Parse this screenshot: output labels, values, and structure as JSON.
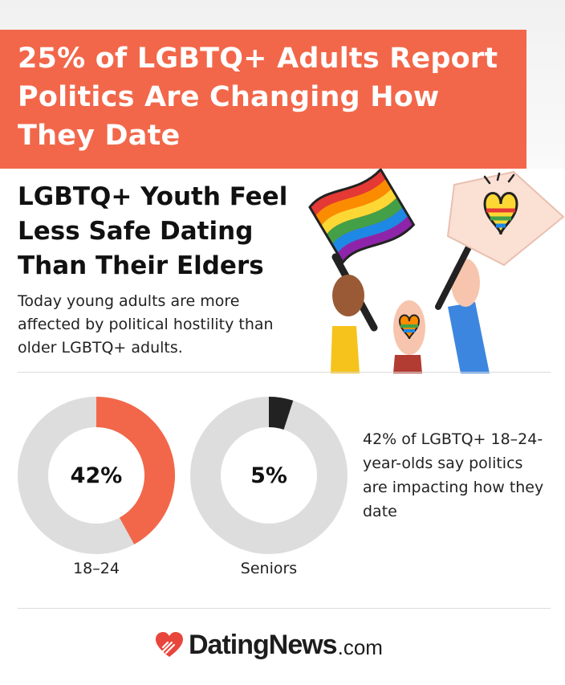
{
  "banner": {
    "title": "25% of LGBTQ+ Adults Report Politics Are Changing How They Date"
  },
  "headline": "LGBTQ+ Youth Feel Less Safe Dating Than Their Elders",
  "subhead": "Today young adults are more affected by political hostility than older LGBTQ+ adults.",
  "illustration": {
    "icons": [
      "rainbow-flag-icon",
      "heart-sign-icon",
      "rainbow-heart-icon"
    ]
  },
  "chart_data": {
    "type": "pie",
    "subtype": "donut",
    "categories": [
      "18–24",
      "Seniors"
    ],
    "values": [
      42,
      5
    ],
    "value_labels": [
      "42%",
      "5%"
    ],
    "unit": "%",
    "colors": {
      "fill": [
        "#f2674a",
        "#222222"
      ],
      "track": "#dddddd"
    }
  },
  "stat_text": "42% of LGBTQ+ 18–24-year-olds say politics are impacting how they date",
  "logo": {
    "brand": "DatingNews",
    "suffix": ".com",
    "icon": "heart-logo-icon",
    "color": "#e8463c"
  }
}
